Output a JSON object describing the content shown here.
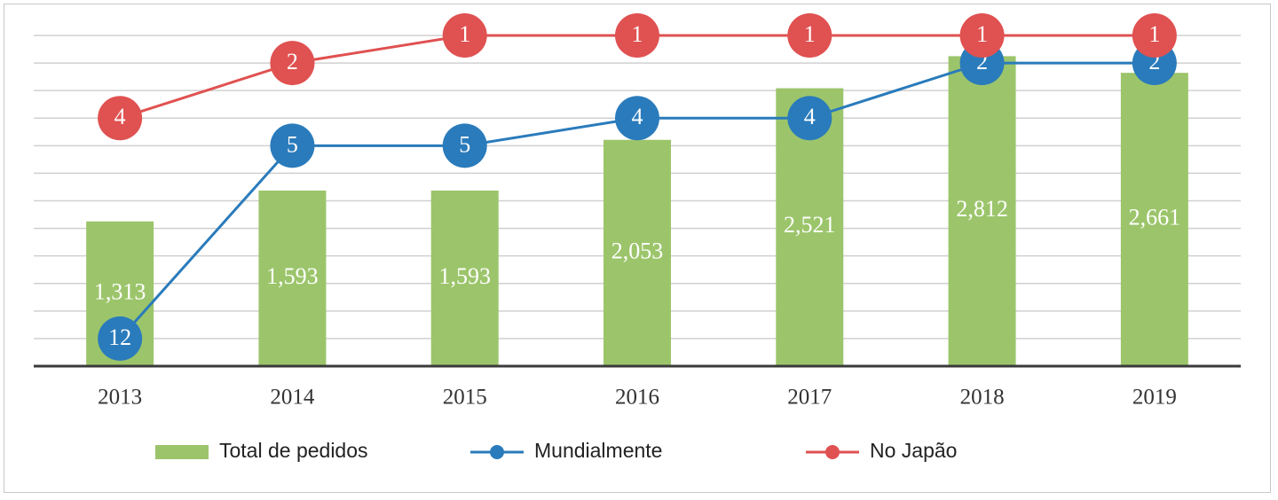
{
  "chart_data": {
    "type": "bar-line",
    "categories": [
      "2013",
      "2014",
      "2015",
      "2016",
      "2017",
      "2018",
      "2019"
    ],
    "series": [
      {
        "name": "Total de pedidos",
        "type": "bar",
        "color": "#9cc56b",
        "values": [
          1313,
          1593,
          1593,
          2053,
          2521,
          2812,
          2661
        ],
        "value_labels": [
          "1,313",
          "1,593",
          "1,593",
          "2,053",
          "2,521",
          "2,812",
          "2,661"
        ]
      },
      {
        "name": "Mundialmente",
        "type": "line",
        "axis": "y2",
        "color": "#2a7bbb",
        "values": [
          12,
          5,
          5,
          4,
          4,
          2,
          2
        ]
      },
      {
        "name": "No Japão",
        "type": "line",
        "axis": "y2",
        "color": "#e05151",
        "values": [
          4,
          2,
          1,
          1,
          1,
          1,
          1
        ]
      }
    ],
    "ylim": [
      0,
      3000
    ],
    "yticks": [
      0,
      250,
      500,
      750,
      1000,
      1250,
      1500,
      1750,
      2000,
      2250,
      2500,
      2750,
      3000
    ],
    "y2lim": [
      13,
      1
    ],
    "grid": true,
    "legend": "bottom"
  }
}
